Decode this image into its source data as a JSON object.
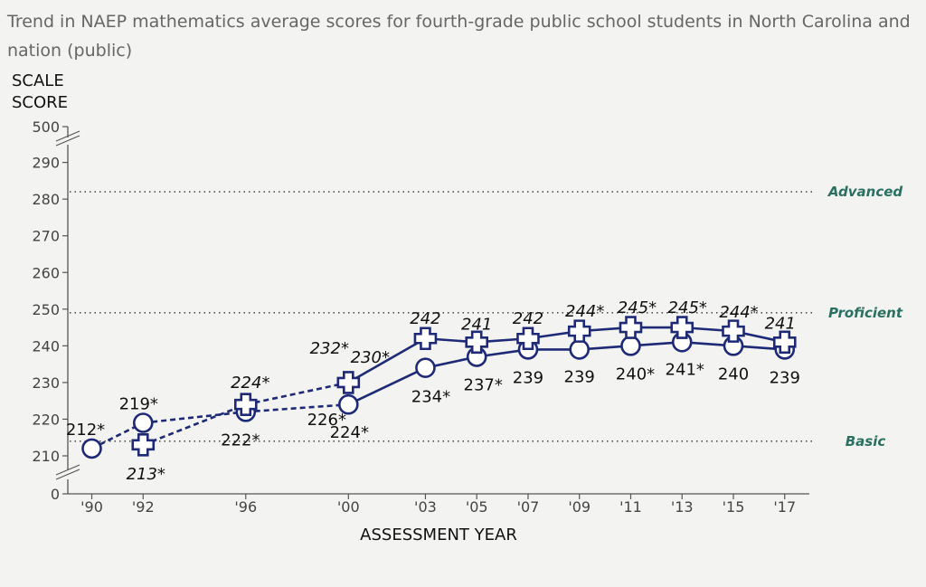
{
  "title": "Trend in NAEP mathematics average scores for fourth-grade public school students in North Carolina and nation (public)",
  "colors": {
    "series": "#1f2a77",
    "axis": "#555555",
    "achievement_label": "#2a7060",
    "background": "#f3f3f1"
  },
  "chart_data": {
    "type": "line",
    "ylabel_lines": [
      "SCALE",
      "SCORE"
    ],
    "xlabel": "ASSESSMENT YEAR",
    "y_ticks": [
      0,
      210,
      220,
      230,
      240,
      250,
      260,
      270,
      280,
      290,
      500
    ],
    "y_axis_break": true,
    "ylim": [
      205,
      292
    ],
    "categories": [
      "'90",
      "'92",
      "'96",
      "'00",
      "'03",
      "'05",
      "'07",
      "'09",
      "'11",
      "'13",
      "'15",
      "'17"
    ],
    "category_years": [
      1990,
      1992,
      1996,
      2000,
      2003,
      2005,
      2007,
      2009,
      2011,
      2013,
      2015,
      2017
    ],
    "achievement_levels": [
      {
        "name": "Advanced",
        "value": 282
      },
      {
        "name": "Proficient",
        "value": 249
      },
      {
        "name": "Basic",
        "value": 214
      }
    ],
    "series": [
      {
        "marker": "circle",
        "values": [
          212,
          219,
          222,
          224,
          234,
          237,
          239,
          239,
          240,
          241,
          240,
          239
        ],
        "labels": [
          "212*",
          "219*",
          "222*",
          "224*",
          "234*",
          "237*",
          "239",
          "239",
          "240*",
          "241*",
          "240",
          "239"
        ],
        "italic": false,
        "dashed_until_index": 3
      },
      {
        "marker": "cross",
        "values": [
          null,
          213,
          224,
          230,
          242,
          241,
          242,
          244,
          245,
          245,
          244,
          241
        ],
        "labels": [
          null,
          "213*",
          "224*",
          "230*",
          "242",
          "241",
          "242",
          "244*",
          "245*",
          "245*",
          "244*",
          "241"
        ],
        "italic": true,
        "dashed_until_index": 3
      }
    ],
    "extra_labels": [
      {
        "text": "232*",
        "italic": true,
        "x_index": 3
      },
      {
        "text": "226*",
        "italic": false,
        "x_index": 3
      }
    ]
  }
}
